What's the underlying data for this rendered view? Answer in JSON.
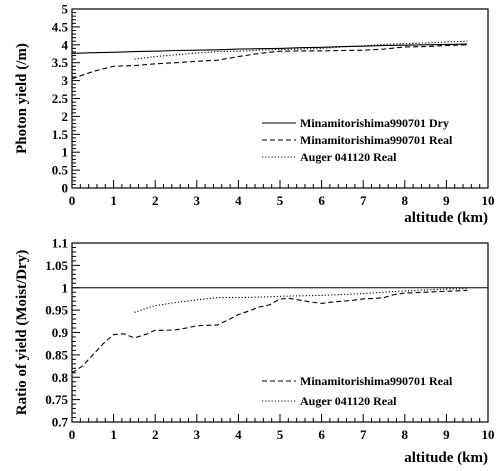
{
  "chart_data": [
    {
      "type": "line",
      "xlabel": "altitude (km)",
      "ylabel": "Photon yield (/m)",
      "xlim": [
        0,
        10
      ],
      "ylim": [
        0,
        5
      ],
      "xticks": [
        "0",
        "1",
        "2",
        "3",
        "4",
        "5",
        "6",
        "7",
        "8",
        "9",
        "10"
      ],
      "yticks": [
        "0",
        "0.5",
        "1",
        "1.5",
        "2",
        "2.5",
        "3",
        "3.5",
        "4",
        "4.5",
        "5"
      ],
      "legend_position": "lower-right",
      "grid": false,
      "series": [
        {
          "name": "Minamitorishima990701 Dry",
          "style": "solid",
          "x": [
            0,
            0.5,
            1,
            1.5,
            2,
            2.5,
            3,
            3.5,
            4,
            4.5,
            5,
            5.5,
            6,
            6.5,
            7,
            7.5,
            8,
            8.5,
            9,
            9.5
          ],
          "y": [
            3.76,
            3.78,
            3.79,
            3.81,
            3.82,
            3.84,
            3.85,
            3.86,
            3.88,
            3.89,
            3.9,
            3.92,
            3.93,
            3.95,
            3.96,
            3.98,
            3.99,
            4.0,
            4.01,
            4.02
          ]
        },
        {
          "name": "Minamitorishima990701 Real",
          "style": "dashed",
          "x": [
            0,
            0.25,
            0.5,
            0.75,
            1,
            1.25,
            1.5,
            2,
            2.5,
            3,
            3.5,
            4,
            4.5,
            5,
            5.5,
            6,
            6.5,
            7,
            7.5,
            8,
            8.5,
            9,
            9.5
          ],
          "y": [
            3.05,
            3.15,
            3.25,
            3.33,
            3.4,
            3.41,
            3.42,
            3.47,
            3.5,
            3.54,
            3.57,
            3.67,
            3.76,
            3.82,
            3.83,
            3.83,
            3.84,
            3.85,
            3.88,
            3.94,
            3.95,
            3.98,
            4.0
          ]
        },
        {
          "name": "Auger 041120 Real",
          "style": "dotted",
          "x": [
            1.5,
            2,
            2.5,
            3,
            3.5,
            4,
            4.5,
            5,
            5.5,
            6,
            6.5,
            7,
            7.5,
            8,
            8.5,
            9,
            9.5
          ],
          "y": [
            3.6,
            3.67,
            3.72,
            3.77,
            3.81,
            3.82,
            3.85,
            3.87,
            3.88,
            3.9,
            3.94,
            3.97,
            4.01,
            4.03,
            4.05,
            4.08,
            4.1
          ]
        }
      ]
    },
    {
      "type": "line",
      "xlabel": "altitude (km)",
      "ylabel": "Ratio of yield (Moist/Dry)",
      "xlim": [
        0,
        10
      ],
      "ylim": [
        0.7,
        1.1
      ],
      "xticks": [
        "0",
        "1",
        "2",
        "3",
        "4",
        "5",
        "6",
        "7",
        "8",
        "9",
        "10"
      ],
      "yticks": [
        "0.7",
        "0.75",
        "0.8",
        "0.85",
        "0.9",
        "0.95",
        "1",
        "1.05",
        "1.1"
      ],
      "legend_position": "lower-right",
      "grid": false,
      "reference_line": 1.0,
      "series": [
        {
          "name": "Minamitorishima990701 Real",
          "style": "dashed",
          "x": [
            0,
            0.25,
            0.5,
            0.75,
            1,
            1.25,
            1.5,
            1.75,
            2,
            2.25,
            2.5,
            2.75,
            3,
            3.25,
            3.5,
            3.75,
            4,
            4.25,
            4.5,
            4.75,
            5,
            5.25,
            5.5,
            5.75,
            6,
            6.25,
            6.5,
            6.75,
            7,
            7.25,
            7.5,
            7.75,
            8,
            8.5,
            9,
            9.5
          ],
          "y": [
            0.81,
            0.825,
            0.85,
            0.875,
            0.895,
            0.897,
            0.888,
            0.895,
            0.905,
            0.905,
            0.906,
            0.91,
            0.915,
            0.916,
            0.917,
            0.928,
            0.94,
            0.948,
            0.957,
            0.962,
            0.975,
            0.976,
            0.972,
            0.968,
            0.965,
            0.968,
            0.97,
            0.972,
            0.975,
            0.976,
            0.978,
            0.985,
            0.988,
            0.99,
            0.992,
            0.994
          ]
        },
        {
          "name": "Auger 041120 Real",
          "style": "dotted",
          "x": [
            1.5,
            1.75,
            2,
            2.5,
            3,
            3.5,
            4,
            4.5,
            5,
            5.5,
            6,
            6.5,
            7,
            7.5,
            8,
            8.5,
            9,
            9.5
          ],
          "y": [
            0.945,
            0.953,
            0.96,
            0.967,
            0.973,
            0.978,
            0.978,
            0.979,
            0.981,
            0.982,
            0.983,
            0.985,
            0.987,
            0.99,
            0.993,
            0.995,
            0.997,
            0.998
          ]
        }
      ]
    }
  ]
}
